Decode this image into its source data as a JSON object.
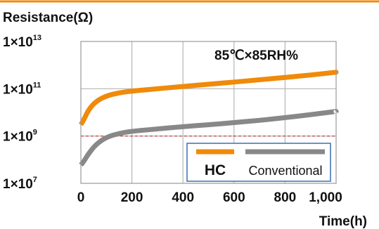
{
  "chart_data": {
    "type": "line",
    "ylabel": "Resistance(Ω)",
    "xlabel": "Time(h)",
    "annotation": "85℃×85RH%",
    "accent_line_color": "#f08a0a",
    "threshold_line_color": "#cc3333",
    "y_scale": "log",
    "ylim": [
      10000000.0,
      10000000000000.0
    ],
    "xlim": [
      0,
      1000
    ],
    "grid": true,
    "x_ticks": [
      "0",
      "200",
      "400",
      "600",
      "800",
      "1,000"
    ],
    "y_ticks": [
      {
        "base": "1×10",
        "exp": "13"
      },
      {
        "base": "1×10",
        "exp": "11"
      },
      {
        "base": "1×10",
        "exp": "9"
      },
      {
        "base": "1×10",
        "exp": "7"
      }
    ],
    "threshold": 1000000000.0,
    "legend_position": "bottom-right",
    "series": [
      {
        "name": "HC",
        "color": "#f08a0a",
        "x": [
          0,
          10,
          30,
          60,
          100,
          150,
          200,
          300,
          400,
          500,
          600,
          700,
          800,
          900,
          1000
        ],
        "y": [
          3000000000.0,
          4500000000.0,
          13000000000.0,
          30000000000.0,
          50000000000.0,
          68000000000.0,
          80000000000.0,
          100000000000.0,
          125000000000.0,
          155000000000.0,
          190000000000.0,
          240000000000.0,
          300000000000.0,
          380000000000.0,
          500000000000.0
        ]
      },
      {
        "name": "Conventional",
        "color": "#888888",
        "x": [
          0,
          10,
          30,
          60,
          100,
          150,
          200,
          300,
          400,
          500,
          600,
          700,
          800,
          900,
          1000
        ],
        "y": [
          60000000.0,
          80000000.0,
          180000000.0,
          450000000.0,
          900000000.0,
          1300000000.0,
          1600000000.0,
          2000000000.0,
          2500000000.0,
          3000000000.0,
          3700000000.0,
          4600000000.0,
          6000000000.0,
          8000000000.0,
          11000000000.0
        ]
      }
    ]
  }
}
